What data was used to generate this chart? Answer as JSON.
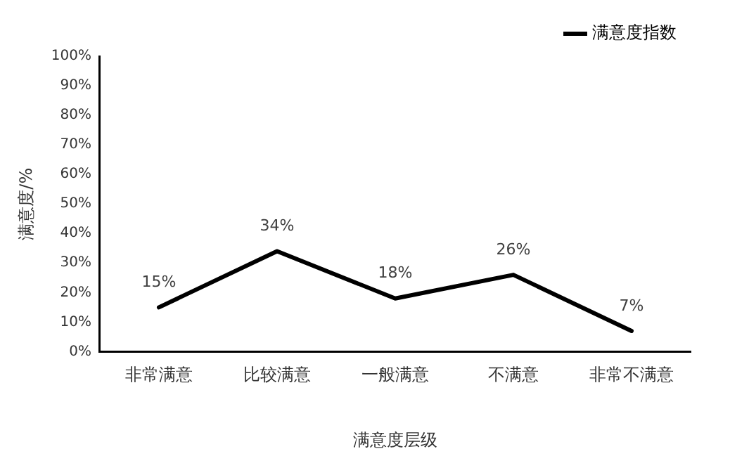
{
  "chart_data": {
    "type": "line",
    "categories": [
      "非常满意",
      "比较满意",
      "一般满意",
      "不满意",
      "非常不满意"
    ],
    "series": [
      {
        "name": "满意度指数",
        "color": "#000000",
        "values": [
          15,
          34,
          18,
          26,
          7
        ],
        "value_labels": [
          "15%",
          "34%",
          "18%",
          "26%",
          "7%"
        ]
      }
    ],
    "xlabel": "满意度层级",
    "ylabel": "满意度/%",
    "ylim": [
      0,
      100
    ],
    "yticks": [
      {
        "value": 0,
        "label": "0%"
      },
      {
        "value": 10,
        "label": "10%"
      },
      {
        "value": 20,
        "label": "20%"
      },
      {
        "value": 30,
        "label": "30%"
      },
      {
        "value": 40,
        "label": "40%"
      },
      {
        "value": 50,
        "label": "50%"
      },
      {
        "value": 60,
        "label": "60%"
      },
      {
        "value": 70,
        "label": "70%"
      },
      {
        "value": 80,
        "label": "80%"
      },
      {
        "value": 90,
        "label": "90%"
      },
      {
        "value": 100,
        "label": "100%"
      }
    ],
    "grid": false,
    "legend": "top right",
    "marker": "none",
    "line_style": "solid"
  }
}
